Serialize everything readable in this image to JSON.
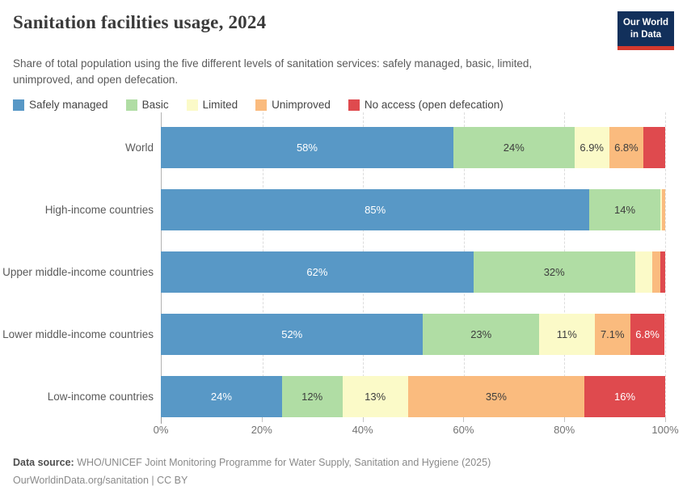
{
  "header": {
    "title": "Sanitation facilities usage, 2024",
    "subtitle": "Share of total population using the five different levels of sanitation services: safely managed, basic, limited, unimproved, and open defecation.",
    "logo": {
      "line1": "Our World",
      "line2": "in Data"
    }
  },
  "colors": {
    "safely_managed": "#5898C6",
    "basic": "#B0DDA4",
    "limited": "#FBFAC8",
    "unimproved": "#FABB7E",
    "no_access": "#DF4A4E",
    "logo_navy": "#12305B",
    "logo_red": "#D4392D",
    "axis_line": "#B3B3B3",
    "gridline": "#DCDCDC"
  },
  "legend": {
    "items": [
      {
        "label": "Safely managed",
        "color": "#5898C6"
      },
      {
        "label": "Basic",
        "color": "#B0DDA4"
      },
      {
        "label": "Limited",
        "color": "#FBFAC8"
      },
      {
        "label": "Unimproved",
        "color": "#FABB7E"
      },
      {
        "label": "No access (open defecation)",
        "color": "#DF4A4E"
      }
    ]
  },
  "chart_data": {
    "type": "bar",
    "stacked": true,
    "orientation": "horizontal",
    "title": "Sanitation facilities usage, 2024",
    "xlabel": "",
    "ylabel": "",
    "xlim": [
      0,
      100
    ],
    "grid": "dashed-vertical",
    "legend_position": "top",
    "categories": [
      "World",
      "High-income countries",
      "Upper middle-income countries",
      "Lower middle-income countries",
      "Low-income countries"
    ],
    "series": [
      {
        "name": "Safely managed",
        "color": "#5898C6",
        "label_color": "#FFFFFF",
        "values": [
          58,
          85,
          62,
          52,
          24
        ],
        "labels": [
          "58%",
          "85%",
          "62%",
          "52%",
          "24%"
        ]
      },
      {
        "name": "Basic",
        "color": "#B0DDA4",
        "label_color": "#3D3D3D",
        "values": [
          24,
          14,
          32,
          23,
          12
        ],
        "labels": [
          "24%",
          "14%",
          "32%",
          "23%",
          "12%"
        ]
      },
      {
        "name": "Limited",
        "color": "#FBFAC8",
        "label_color": "#3D3D3D",
        "values": [
          6.9,
          0.3,
          3.4,
          11,
          13
        ],
        "labels": [
          "6.9%",
          "",
          "",
          "11%",
          "13%"
        ]
      },
      {
        "name": "Unimproved",
        "color": "#FABB7E",
        "label_color": "#3D3D3D",
        "values": [
          6.8,
          0.7,
          1.6,
          7.1,
          35
        ],
        "labels": [
          "6.8%",
          "",
          "",
          "7.1%",
          "35%"
        ]
      },
      {
        "name": "No access (open defecation)",
        "color": "#DF4A4E",
        "label_color": "#FFFFFF",
        "values": [
          4.3,
          0,
          1.0,
          6.8,
          16
        ],
        "labels": [
          "",
          "",
          "",
          "6.8%",
          "16%"
        ]
      }
    ],
    "ticks": [
      {
        "label": "0%",
        "value": 0
      },
      {
        "label": "20%",
        "value": 20
      },
      {
        "label": "40%",
        "value": 40
      },
      {
        "label": "60%",
        "value": 60
      },
      {
        "label": "80%",
        "value": 80
      },
      {
        "label": "100%",
        "value": 100
      }
    ]
  },
  "footer": {
    "data_source_label": "Data source:",
    "data_source_text": "WHO/UNICEF Joint Monitoring Programme for Water Supply, Sanitation and Hygiene (2025)",
    "license_line": "OurWorldinData.org/sanitation | CC BY"
  }
}
